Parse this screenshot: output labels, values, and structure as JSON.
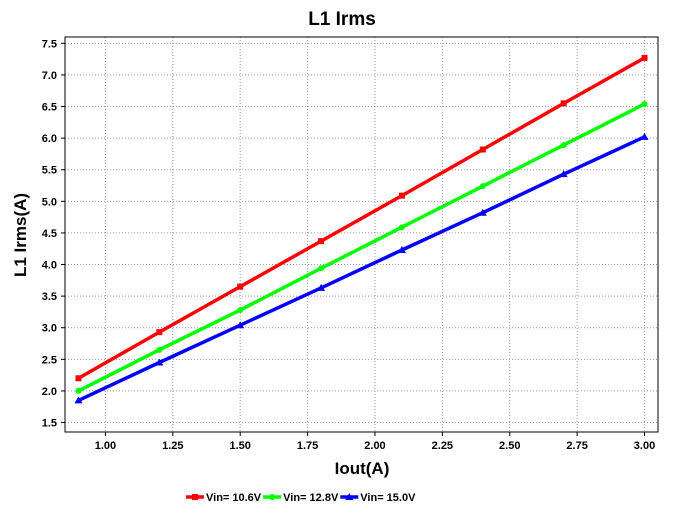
{
  "chart_data": {
    "type": "line",
    "title": "L1 Irms",
    "xlabel": "Iout(A)",
    "ylabel": "L1 Irms(A)",
    "xlim": [
      0.85,
      3.05
    ],
    "ylim": [
      1.35,
      7.6
    ],
    "xticks": [
      "1.00",
      "1.25",
      "1.50",
      "1.75",
      "2.00",
      "2.25",
      "2.50",
      "2.75",
      "3.00"
    ],
    "yticks": [
      "1.5",
      "2.0",
      "2.5",
      "3.0",
      "3.5",
      "4.0",
      "4.5",
      "5.0",
      "5.5",
      "6.0",
      "6.5",
      "7.0",
      "7.5"
    ],
    "grid": true,
    "legend_position": "bottom",
    "x": [
      0.9,
      1.2,
      1.5,
      1.8,
      2.1,
      2.4,
      2.7,
      3.0
    ],
    "series": [
      {
        "name": "Vin= 10.6V",
        "color": "#ff0000",
        "marker": "square",
        "values": [
          2.2,
          2.93,
          3.65,
          4.37,
          5.09,
          5.82,
          6.55,
          7.27
        ]
      },
      {
        "name": "Vin= 12.8V",
        "color": "#00ff00",
        "marker": "circle",
        "values": [
          2.0,
          2.65,
          3.28,
          3.94,
          4.59,
          5.24,
          5.89,
          6.54
        ]
      },
      {
        "name": "Vin= 15.0V",
        "color": "#0000ff",
        "marker": "triangle",
        "values": [
          1.85,
          2.45,
          3.04,
          3.63,
          4.23,
          4.82,
          5.43,
          6.02
        ]
      }
    ]
  }
}
